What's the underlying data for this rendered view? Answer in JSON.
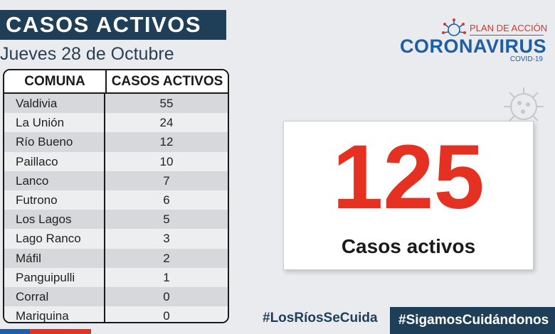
{
  "header": {
    "title": "CASOS ACTIVOS",
    "date": "Jueves 28 de Octubre"
  },
  "table": {
    "col_comuna": "COMUNA",
    "col_casos": "CASOS ACTIVOS",
    "rows": [
      {
        "comuna": "Valdivia",
        "casos": "55"
      },
      {
        "comuna": "La Unión",
        "casos": "24"
      },
      {
        "comuna": "Río Bueno",
        "casos": "12"
      },
      {
        "comuna": "Paillaco",
        "casos": "10"
      },
      {
        "comuna": "Lanco",
        "casos": "7"
      },
      {
        "comuna": "Futrono",
        "casos": "6"
      },
      {
        "comuna": "Los Lagos",
        "casos": "5"
      },
      {
        "comuna": "Lago Ranco",
        "casos": "3"
      },
      {
        "comuna": "Máfil",
        "casos": "2"
      },
      {
        "comuna": "Panguipulli",
        "casos": "1"
      },
      {
        "comuna": "Corral",
        "casos": "0"
      },
      {
        "comuna": "Mariquina",
        "casos": "0"
      }
    ]
  },
  "logo": {
    "plan": "PLAN DE ACCIÓN",
    "name": "CORONAVIRUS",
    "sub": "COVID-19",
    "icon": "virus-icon"
  },
  "total": {
    "value": "125",
    "label": "Casos activos"
  },
  "hashtags": {
    "first": "#LosRíosSeCuida",
    "second": "#SigamosCuidándonos"
  },
  "colors": {
    "navy": "#1f3f58",
    "red": "#e53122",
    "blue": "#1d5ea8"
  }
}
